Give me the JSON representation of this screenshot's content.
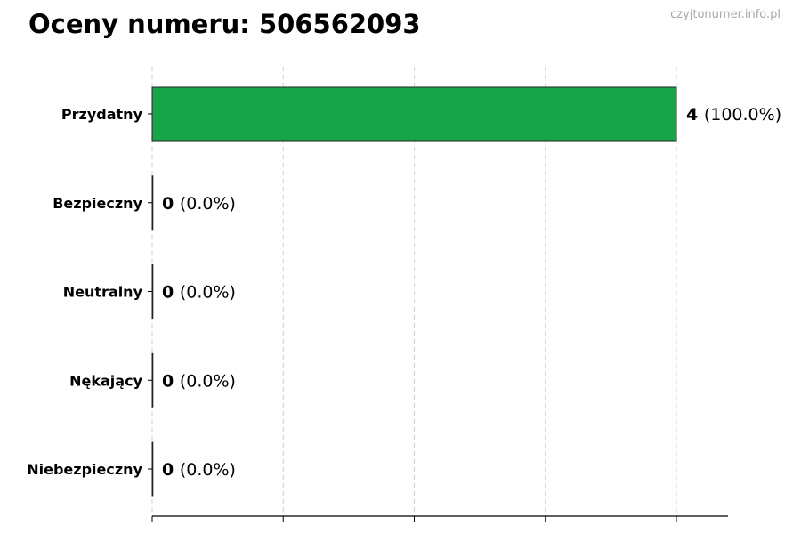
{
  "watermark": "czyjtonumer.info.pl",
  "chart_data": {
    "type": "bar",
    "orientation": "horizontal",
    "title": "Oceny numeru: 506562093",
    "categories": [
      "Przydatny",
      "Bezpieczny",
      "Neutralny",
      "Nękający",
      "Niebezpieczny"
    ],
    "values": [
      4,
      0,
      0,
      0,
      0
    ],
    "value_labels": [
      "4",
      "0",
      "0",
      "0",
      "0"
    ],
    "percent_labels": [
      "(100.0%)",
      "(0.0%)",
      "(0.0%)",
      "(0.0%)",
      "(0.0%)"
    ],
    "bar_color": "#18a54a",
    "xlim": [
      0,
      4.4
    ],
    "x_ticks": [
      0,
      1,
      2,
      3,
      4
    ],
    "x_tick_labels_shown": false,
    "grid": "vertical dashed",
    "xlabel": "",
    "ylabel": ""
  }
}
